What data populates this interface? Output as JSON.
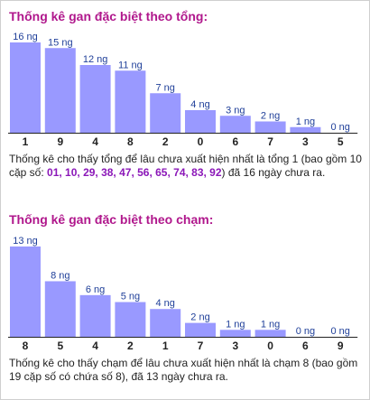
{
  "chart_data": [
    {
      "type": "bar",
      "title": "Thống kê gan đặc biệt theo tổng:",
      "categories": [
        "1",
        "9",
        "4",
        "8",
        "2",
        "0",
        "6",
        "7",
        "3",
        "5"
      ],
      "values": [
        16,
        15,
        12,
        11,
        7,
        4,
        3,
        2,
        1,
        0
      ],
      "value_suffix": " ng",
      "ylim": [
        0,
        16
      ],
      "grid": false,
      "colors": {
        "bar": "#9999ff",
        "value_label": "#1f3f99",
        "baseline": "#222222"
      }
    },
    {
      "type": "bar",
      "title": "Thống kê gan đặc biệt theo chạm:",
      "categories": [
        "8",
        "5",
        "4",
        "2",
        "1",
        "7",
        "3",
        "0",
        "6",
        "9"
      ],
      "values": [
        13,
        8,
        6,
        5,
        4,
        2,
        1,
        1,
        0,
        0
      ],
      "value_suffix": " ng",
      "ylim": [
        0,
        13
      ],
      "grid": false,
      "colors": {
        "bar": "#9999ff",
        "value_label": "#1f3f99",
        "baseline": "#222222"
      }
    }
  ],
  "sum_section": {
    "desc_before": "Thống kê cho thấy tổng để lâu chưa xuất hiện nhất là tổng 1 (bao gồm 10 cặp số: ",
    "highlight": "01, 10, 29, 38, 47, 56, 65, 74, 83, 92",
    "desc_after": ") đã 16 ngày chưa ra."
  },
  "touch_section": {
    "desc": "Thống kê cho thấy chạm để lâu chưa xuất hiện nhất là chạm 8 (bao gồm 19 cặp số có chứa số 8), đã 13 ngày chưa ra."
  }
}
